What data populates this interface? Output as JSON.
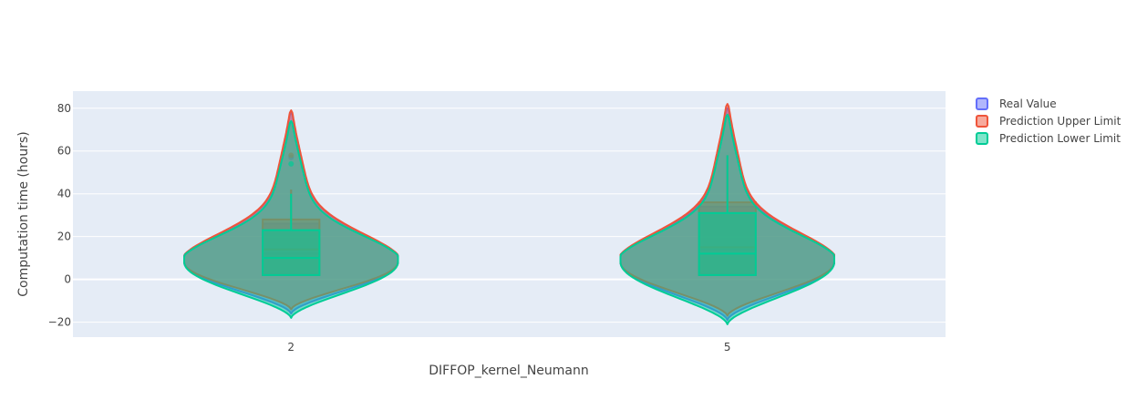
{
  "chart_data": {
    "type": "violin",
    "title": "",
    "xlabel": "DIFFOP_kernel_Neumann",
    "ylabel": "Computation time (hours)",
    "categories": [
      "2",
      "5"
    ],
    "ylim": [
      -27,
      88
    ],
    "yticks": [
      -20,
      0,
      20,
      40,
      60,
      80
    ],
    "grid": true,
    "legend_position": "right",
    "series": [
      {
        "name": "Real Value",
        "color": "#636efa",
        "violins": [
          {
            "category": "2",
            "min": -16,
            "max": 78,
            "max_width": 0.49,
            "box": {
              "q1": 2,
              "median": 12,
              "q3": 26,
              "whisker_high": 42
            },
            "outliers": [
              57
            ]
          },
          {
            "category": "5",
            "min": -19,
            "max": 80,
            "max_width": 0.49,
            "box": {
              "q1": 2,
              "median": 14,
              "q3": 34,
              "whisker_high": 58
            },
            "outliers": []
          }
        ]
      },
      {
        "name": "Prediction Upper Limit",
        "color": "#ef553b",
        "violins": [
          {
            "category": "2",
            "min": -14,
            "max": 79,
            "max_width": 0.49,
            "box": {
              "q1": 2,
              "median": 14,
              "q3": 28,
              "whisker_high": 42
            },
            "outliers": [
              58
            ]
          },
          {
            "category": "5",
            "min": -17,
            "max": 82,
            "max_width": 0.49,
            "box": {
              "q1": 2,
              "median": 15,
              "q3": 36,
              "whisker_high": 58
            },
            "outliers": []
          }
        ]
      },
      {
        "name": "Prediction Lower Limit",
        "color": "#00cc96",
        "violins": [
          {
            "category": "2",
            "min": -18,
            "max": 74,
            "max_width": 0.49,
            "box": {
              "q1": 2,
              "median": 10,
              "q3": 23,
              "whisker_high": 40
            },
            "outliers": [
              54
            ]
          },
          {
            "category": "5",
            "min": -21,
            "max": 77,
            "max_width": 0.49,
            "box": {
              "q1": 2,
              "median": 12,
              "q3": 31,
              "whisker_high": 58
            },
            "outliers": []
          }
        ]
      }
    ]
  }
}
